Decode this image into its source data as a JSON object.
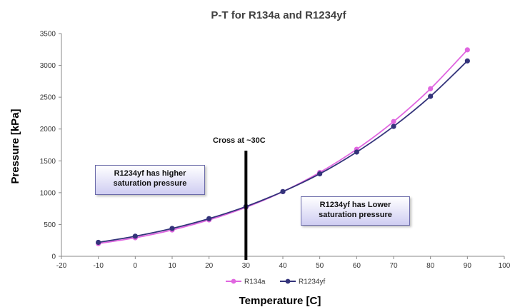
{
  "chart_data": {
    "type": "line",
    "title": "P-T for R134a and R1234yf",
    "xlabel": "Temperature [C]",
    "ylabel": "Pressure [kPa]",
    "xlim": [
      -20,
      100
    ],
    "ylim": [
      0,
      3500
    ],
    "xticks": [
      -20,
      -10,
      0,
      10,
      20,
      30,
      40,
      50,
      60,
      70,
      80,
      90,
      100
    ],
    "yticks": [
      0,
      500,
      1000,
      1500,
      2000,
      2500,
      3000,
      3500
    ],
    "x": [
      -10,
      0,
      10,
      20,
      30,
      40,
      50,
      60,
      70,
      80,
      90
    ],
    "series": [
      {
        "name": "R134a",
        "color": "#e066e0",
        "values": [
          200,
          292,
          414,
          572,
          770,
          1016,
          1318,
          1682,
          2117,
          2633,
          3244
        ]
      },
      {
        "name": "R1234yf",
        "color": "#33337a",
        "values": [
          219,
          316,
          438,
          592,
          782,
          1017,
          1296,
          1638,
          2041,
          2514,
          3070
        ]
      }
    ],
    "legend_position": "bottom",
    "grid": false,
    "annotations": {
      "cross": {
        "label": "Cross at ~30C",
        "x": 30
      },
      "left_box": "R1234yf has higher saturation pressure",
      "right_box": "R1234yf has Lower saturation pressure"
    }
  }
}
